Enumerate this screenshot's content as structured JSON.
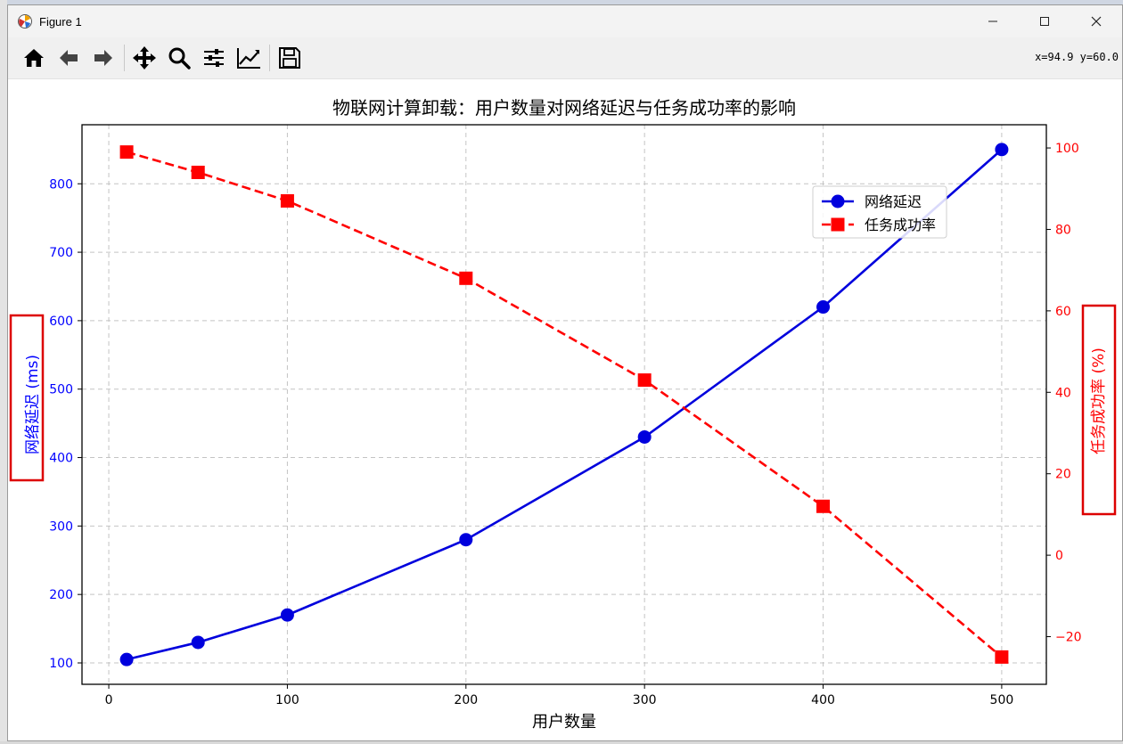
{
  "window": {
    "title": "Figure 1"
  },
  "toolbar": {
    "buttons": [
      {
        "name": "home",
        "icon": "home-icon"
      },
      {
        "name": "back",
        "icon": "arrow-left-icon"
      },
      {
        "name": "forward",
        "icon": "arrow-right-icon"
      },
      {
        "name": "pan",
        "icon": "move-icon"
      },
      {
        "name": "zoom",
        "icon": "magnifier-icon"
      },
      {
        "name": "configure-subplots",
        "icon": "sliders-icon"
      },
      {
        "name": "edit-axes",
        "icon": "line-chart-icon"
      },
      {
        "name": "save",
        "icon": "floppy-disk-icon"
      }
    ],
    "coords": "x=94.9 y=60.0"
  },
  "chart_data": {
    "type": "line",
    "title": "物联网计算卸载：用户数量对网络延迟与任务成功率的影响",
    "xlabel": "用户数量",
    "ylabel_left": "网络延迟 (ms)",
    "ylabel_right": "任务成功率 (%)",
    "x": [
      10,
      50,
      100,
      200,
      300,
      400,
      500
    ],
    "xlim": [
      -15,
      525
    ],
    "xticks": [
      0,
      100,
      200,
      300,
      400,
      500
    ],
    "ylim_left": [
      68.75,
      886.25
    ],
    "yticks_left": [
      100,
      200,
      300,
      400,
      500,
      600,
      700,
      800
    ],
    "ylim_right": [
      -31.7,
      105.7
    ],
    "yticks_right": [
      -20,
      0,
      20,
      40,
      60,
      80,
      100
    ],
    "grid": true,
    "legend_position": "upper right",
    "series": [
      {
        "name": "网络延迟",
        "axis": "left",
        "color": "#0000dd",
        "marker": "circle",
        "linestyle": "solid",
        "values": [
          105,
          130,
          170,
          280,
          430,
          620,
          850
        ]
      },
      {
        "name": "任务成功率",
        "axis": "right",
        "color": "#ff0000",
        "marker": "square",
        "linestyle": "dashed",
        "values": [
          99,
          94,
          87,
          68,
          43,
          12,
          -25
        ]
      }
    ],
    "label_colors": {
      "left": "#0000ff",
      "right": "#ff0000"
    },
    "annotation_box_color": "#dd0000"
  }
}
